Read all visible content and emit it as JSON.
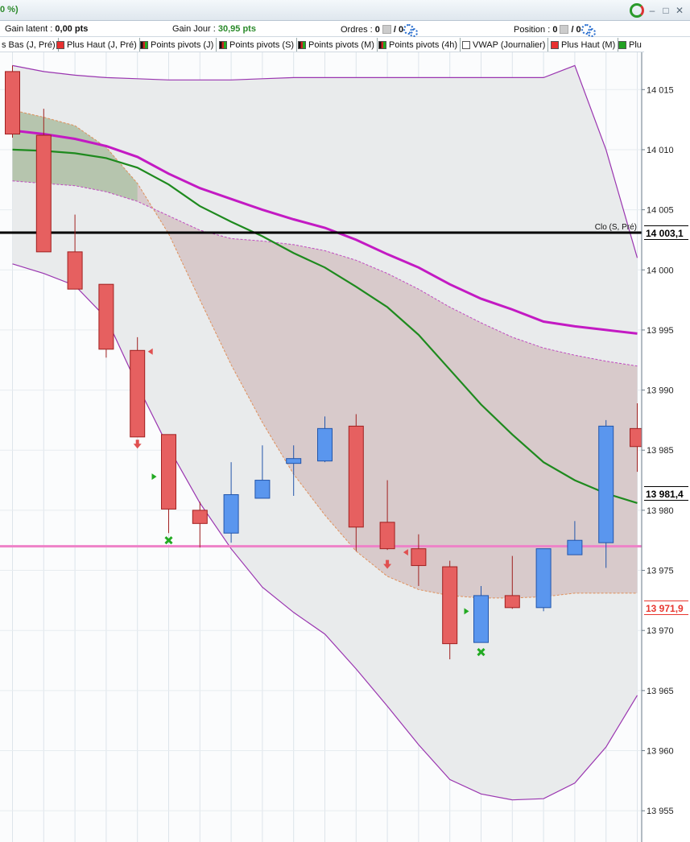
{
  "window": {
    "title_fragment": "0 %)"
  },
  "info_bar": {
    "gain_latent_label": "Gain latent :",
    "gain_latent_value": "0,00 pts",
    "gain_jour_label": "Gain Jour :",
    "gain_jour_value": "30,95 pts",
    "ordres_label": "Ordres :",
    "ordres_value": "0",
    "ordres_slash": "/ 0",
    "position_label": "Position :",
    "position_value": "0",
    "position_slash": "/ 0"
  },
  "legend": [
    {
      "label": "s Bas (J, Pré)",
      "color": null
    },
    {
      "label": "Plus Haut (J, Pré)",
      "color": "#e83030"
    },
    {
      "label": "Points pivots (J)",
      "color": "pivot"
    },
    {
      "label": "Points pivots (S)",
      "color": "pivot"
    },
    {
      "label": "Points pivots (M)",
      "color": "pivot"
    },
    {
      "label": "Points pivots (4h)",
      "color": "pivot"
    },
    {
      "label": "VWAP (Journalier)",
      "color": "#ffffff"
    },
    {
      "label": "Plus Haut (M)",
      "color": "#e83030"
    },
    {
      "label": "Plu",
      "color": "#22a022"
    }
  ],
  "chart_data": {
    "type": "candlestick",
    "ylim": [
      13952.4,
      14018.1
    ],
    "y_ticks": [
      13955,
      13960,
      13965,
      13970,
      13975,
      13980,
      13985,
      13990,
      13995,
      14000,
      14005,
      14010,
      14015
    ],
    "y_tick_labels": [
      "13 955",
      "13 960",
      "13 965",
      "13 970",
      "13 975",
      "13 980",
      "13 985",
      "13 990",
      "13 995",
      "14 000",
      "14 005",
      "14 010",
      "14 015"
    ],
    "candles": [
      {
        "o": 14016.5,
        "h": 14017.0,
        "l": 14011.0,
        "c": 14011.3
      },
      {
        "o": 14011.2,
        "h": 14013.4,
        "l": 14001.7,
        "c": 14001.5
      },
      {
        "o": 14001.5,
        "h": 14004.6,
        "l": 13998.4,
        "c": 13998.4
      },
      {
        "o": 13998.8,
        "h": 13998.8,
        "l": 13992.7,
        "c": 13993.4
      },
      {
        "o": 13993.3,
        "h": 13994.4,
        "l": 13986.1,
        "c": 13986.1
      },
      {
        "o": 13986.3,
        "h": 13986.3,
        "l": 13978.1,
        "c": 13980.1
      },
      {
        "o": 13980.0,
        "h": 13980.7,
        "l": 13976.9,
        "c": 13978.9
      },
      {
        "o": 13978.1,
        "h": 13984.0,
        "l": 13977.3,
        "c": 13981.3
      },
      {
        "o": 13981.0,
        "h": 13985.4,
        "l": 13981.0,
        "c": 13982.5
      },
      {
        "o": 13983.9,
        "h": 13985.4,
        "l": 13981.2,
        "c": 13984.3
      },
      {
        "o": 13984.1,
        "h": 13987.8,
        "l": 13984.0,
        "c": 13986.8
      },
      {
        "o": 13987.0,
        "h": 13988.0,
        "l": 13976.6,
        "c": 13978.6
      },
      {
        "o": 13979.0,
        "h": 13982.5,
        "l": 13976.7,
        "c": 13976.8
      },
      {
        "o": 13976.8,
        "h": 13978.0,
        "l": 13973.7,
        "c": 13975.4
      },
      {
        "o": 13975.3,
        "h": 13975.8,
        "l": 13967.6,
        "c": 13968.9
      },
      {
        "o": 13969.0,
        "h": 13973.7,
        "l": 13969.0,
        "c": 13972.9
      },
      {
        "o": 13972.9,
        "h": 13976.2,
        "l": 13971.8,
        "c": 13971.9
      },
      {
        "o": 13971.9,
        "h": 13976.8,
        "l": 13971.6,
        "c": 13976.8
      },
      {
        "o": 13976.3,
        "h": 13979.1,
        "l": 13976.3,
        "c": 13977.5
      },
      {
        "o": 13977.3,
        "h": 13987.5,
        "l": 13975.2,
        "c": 13987.0
      },
      {
        "o": 13986.8,
        "h": 13988.9,
        "l": 13983.2,
        "c": 13985.3
      }
    ],
    "series": [
      {
        "name": "",
        "color": "#c31ac3",
        "values": [
          14011.6,
          14011.3,
          14010.9,
          14010.3,
          14009.4,
          14008.0,
          14006.8,
          14005.9,
          14005.0,
          14004.2,
          14003.5,
          14002.5,
          14001.3,
          14000.2,
          13998.8,
          13997.6,
          13996.7,
          13995.7,
          13995.3,
          13995.0,
          13994.7
        ]
      },
      {
        "name": "",
        "color": "#1e8a1e",
        "values": [
          14010.0,
          14009.9,
          14009.7,
          14009.3,
          14008.5,
          14007.1,
          14005.3,
          14004.0,
          14002.8,
          14001.4,
          14000.2,
          13998.6,
          13996.9,
          13994.6,
          13991.7,
          13988.8,
          13986.3,
          13984.0,
          13982.5,
          13981.4,
          13980.6
        ]
      }
    ],
    "band_upper": [
      14013.3,
      14012.7,
      14012.0,
      14010.2,
      14007.2,
      14003.0,
      13997.5,
      13992.1,
      13987.3,
      13983.0,
      13979.6,
      13976.6,
      13974.5,
      13973.4,
      13972.9,
      13972.7,
      13972.7,
      13972.8,
      13973.1,
      13973.1,
      13973.1
    ],
    "band_upper_dash": [
      14007.4,
      14007.2,
      14007.0,
      14006.5,
      14005.7,
      14004.5,
      14003.3,
      14002.6,
      14002.4,
      14002.1,
      14001.6,
      14000.8,
      13999.7,
      13998.4,
      13996.9,
      13995.6,
      13994.4,
      13993.5,
      13992.9,
      13992.4,
      13992.0
    ],
    "band_lower": [
      14000.5,
      13999.7,
      13998.7,
      13996.0,
      13990.4,
      13985.2,
      13980.6,
      13976.8,
      13973.6,
      13971.5,
      13969.7,
      13966.8,
      13963.7,
      13960.5,
      13957.6,
      13956.4,
      13955.9,
      13956.0,
      13957.3,
      13960.3,
      13964.6
    ],
    "envelope_outer": [
      14017.0,
      14016.5,
      14016.2,
      14016.0,
      14015.9,
      14015.8,
      14015.8,
      14015.8,
      14015.9,
      14016.0,
      14016.0,
      14016.0,
      14016.0,
      14016.0,
      14016.0,
      14016.0,
      14016.0,
      14016.0,
      14017.0,
      14010.0,
      14001.0
    ],
    "horizontal_lines": [
      {
        "value": 14003.1,
        "color": "#000000",
        "label": "Clo (S, Pré)"
      },
      {
        "value": 13977.0,
        "color": "#ee82c8",
        "label": ""
      }
    ],
    "price_tags": [
      {
        "value": 14003.1,
        "text": "14 003,1",
        "color": "#000000"
      },
      {
        "value": 13981.4,
        "text": "13 981,4",
        "color": "#000000"
      },
      {
        "value": 13971.9,
        "text": "13 971,9",
        "color": "#e8362f"
      }
    ],
    "markers": [
      {
        "index": 4,
        "value": 13985.4,
        "kind": "down-arrow",
        "color": "#e05050"
      },
      {
        "index": 4,
        "value": 13993.2,
        "kind": "left-tri",
        "color": "#e05050",
        "dx": 16
      },
      {
        "index": 5,
        "value": 13982.8,
        "kind": "right-tri",
        "color": "#22aa22",
        "dx": -18
      },
      {
        "index": 5,
        "value": 13977.5,
        "kind": "cross",
        "color": "#22aa22"
      },
      {
        "index": 12,
        "value": 13975.4,
        "kind": "down-arrow",
        "color": "#e05050"
      },
      {
        "index": 13,
        "value": 13976.5,
        "kind": "left-tri",
        "color": "#e05050",
        "dx": -16
      },
      {
        "index": 15,
        "value": 13971.6,
        "kind": "right-tri",
        "color": "#22aa22",
        "dx": -18
      },
      {
        "index": 15,
        "value": 13968.2,
        "kind": "cross",
        "color": "#22aa22"
      }
    ],
    "colors": {
      "bear": "#e66060",
      "bull": "#5a96ee",
      "bear_border": "#a02020",
      "bull_border": "#2255aa"
    }
  }
}
